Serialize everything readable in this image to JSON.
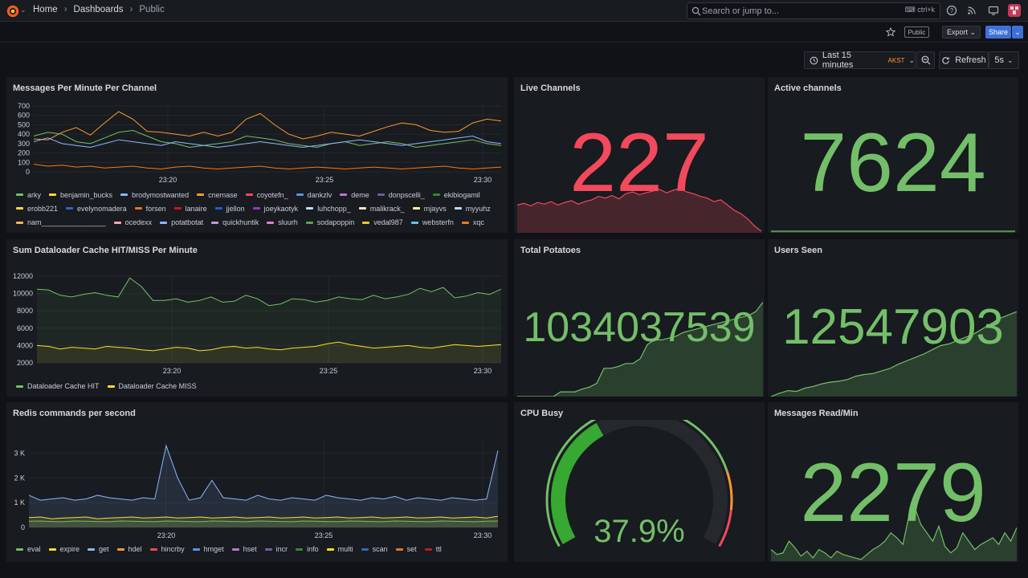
{
  "topbar": {
    "breadcrumb": [
      "Home",
      "Dashboards",
      "Public"
    ],
    "search_placeholder": "Search or jump to...",
    "search_shortcut": "ctrl+k"
  },
  "toolbar": {
    "public_badge": "Public",
    "export_label": "Export",
    "share_label": "Share",
    "time_range": "Last 15 minutes",
    "timezone": "AKST",
    "refresh_label": "Refresh",
    "refresh_interval": "5s"
  },
  "colors": {
    "green": "#73bf69",
    "red": "#f2495c",
    "yellow": "#fade2a",
    "orange": "#ff9830",
    "blue": "#5794f2",
    "bg": "#111217",
    "panel": "#181b1f"
  },
  "panels": {
    "messages": {
      "title": "Messages Per Minute Per Channel",
      "legend": [
        {
          "name": "arky",
          "color": "#73bf69"
        },
        {
          "name": "benjamin_bucks",
          "color": "#fade2a"
        },
        {
          "name": "brodymostwanted",
          "color": "#8ab8ff"
        },
        {
          "name": "cnemase",
          "color": "#ff9830"
        },
        {
          "name": "coyotefn_",
          "color": "#f2495c"
        },
        {
          "name": "dankzlv",
          "color": "#5794f2"
        },
        {
          "name": "deme",
          "color": "#b877d9"
        },
        {
          "name": "donpscelli_",
          "color": "#705da0"
        },
        {
          "name": "ekibiogamil",
          "color": "#37872d"
        },
        {
          "name": "erobb221",
          "color": "#fade2a"
        },
        {
          "name": "evelynomadera",
          "color": "#2f64c8"
        },
        {
          "name": "forsen",
          "color": "#e0752d"
        },
        {
          "name": "lanaire",
          "color": "#c4162a"
        },
        {
          "name": "jjellon",
          "color": "#1f60c4"
        },
        {
          "name": "joeykaotyk",
          "color": "#8f3bb8"
        },
        {
          "name": "luhchopp_",
          "color": "#badff4"
        },
        {
          "name": "malikrack_",
          "color": "#f9e2d2"
        },
        {
          "name": "mjayvs",
          "color": "#fff899"
        },
        {
          "name": "myyuhz",
          "color": "#c0d8ff"
        },
        {
          "name": "nam________________",
          "color": "#ffb357"
        },
        {
          "name": "ocedexx",
          "color": "#ffa6b0"
        },
        {
          "name": "potatbotat",
          "color": "#8ab8ff"
        },
        {
          "name": "quickhuntik",
          "color": "#ca95e5"
        },
        {
          "name": "sluurh",
          "color": "#d683ce"
        },
        {
          "name": "sodapoppin",
          "color": "#56a64b"
        },
        {
          "name": "vedal987",
          "color": "#f2cc0c"
        },
        {
          "name": "websterfn",
          "color": "#5ac8fa"
        },
        {
          "name": "xqc",
          "color": "#ff780a"
        }
      ]
    },
    "live": {
      "title": "Live Channels",
      "value": "227"
    },
    "active": {
      "title": "Active channels",
      "value": "7624"
    },
    "dataloader": {
      "title": "Sum Dataloader Cache HIT/MISS Per Minute",
      "legend": [
        {
          "name": "Dataloader Cache HIT",
          "color": "#73bf69"
        },
        {
          "name": "Dataloader Cache MISS",
          "color": "#fade2a"
        }
      ]
    },
    "potatoes": {
      "title": "Total Potatoes",
      "value": "1034037539"
    },
    "users": {
      "title": "Users Seen",
      "value": "12547903"
    },
    "redis": {
      "title": "Redis commands per second",
      "legend": [
        {
          "name": "eval",
          "color": "#73bf69"
        },
        {
          "name": "expire",
          "color": "#fade2a"
        },
        {
          "name": "get",
          "color": "#8ab8ff"
        },
        {
          "name": "hdel",
          "color": "#ff9830"
        },
        {
          "name": "hincrby",
          "color": "#f2495c"
        },
        {
          "name": "hmget",
          "color": "#5794f2"
        },
        {
          "name": "hset",
          "color": "#b877d9"
        },
        {
          "name": "incr",
          "color": "#705da0"
        },
        {
          "name": "info",
          "color": "#37872d"
        },
        {
          "name": "multi",
          "color": "#fade2a"
        },
        {
          "name": "scan",
          "color": "#2f64c8"
        },
        {
          "name": "set",
          "color": "#e0752d"
        },
        {
          "name": "ttl",
          "color": "#c4162a"
        }
      ]
    },
    "cpu": {
      "title": "CPU Busy",
      "value": "37.9%",
      "percent": 37.9
    },
    "readmin": {
      "title": "Messages Read/Min",
      "value": "2279"
    }
  },
  "chart_data": [
    {
      "type": "line",
      "title": "Messages Per Minute Per Channel",
      "x_ticks": [
        "23:20",
        "23:25",
        "23:30"
      ],
      "y_ticks": [
        "0",
        "100",
        "200",
        "300",
        "400",
        "500",
        "600",
        "700"
      ],
      "ylim": [
        0,
        700
      ],
      "series": [
        {
          "name": "cnemase",
          "values": [
            350,
            340,
            420,
            470,
            390,
            520,
            640,
            560,
            430,
            420,
            400,
            380,
            420,
            380,
            420,
            560,
            620,
            500,
            400,
            350,
            380,
            420,
            400,
            380,
            430,
            480,
            520,
            500,
            440,
            420,
            430,
            520,
            560,
            540
          ]
        },
        {
          "name": "arky",
          "values": [
            380,
            420,
            400,
            320,
            300,
            360,
            420,
            440,
            380,
            320,
            300,
            260,
            280,
            300,
            320,
            380,
            360,
            340,
            300,
            280,
            260,
            300,
            320,
            280,
            300,
            320,
            300,
            260,
            280,
            300,
            320,
            340,
            300,
            280
          ]
        },
        {
          "name": "brodymostwanted",
          "values": [
            320,
            360,
            300,
            280,
            260,
            300,
            340,
            320,
            300,
            280,
            320,
            300,
            280,
            260,
            280,
            300,
            320,
            300,
            280,
            260,
            280,
            300,
            320,
            340,
            320,
            300,
            280,
            300,
            320,
            340,
            360,
            380,
            320,
            300
          ]
        },
        {
          "name": "xqc",
          "values": [
            80,
            60,
            70,
            50,
            60,
            40,
            50,
            60,
            40,
            30,
            50,
            60,
            40,
            30,
            40,
            50,
            60,
            40,
            30,
            40,
            50,
            40,
            30,
            40,
            50,
            40,
            30,
            40,
            50,
            60,
            40,
            30,
            40,
            50
          ]
        }
      ]
    },
    {
      "type": "line",
      "title": "Sum Dataloader Cache HIT/MISS Per Minute",
      "x_ticks": [
        "23:20",
        "23:25",
        "23:30"
      ],
      "y_ticks": [
        "2000",
        "4000",
        "6000",
        "8000",
        "10000",
        "12000"
      ],
      "ylim": [
        2000,
        12000
      ],
      "series": [
        {
          "name": "Dataloader Cache HIT",
          "values": [
            10500,
            10400,
            9800,
            9600,
            9900,
            10100,
            9800,
            9600,
            11800,
            10800,
            9200,
            9200,
            9400,
            9000,
            9200,
            9600,
            9000,
            9100,
            9800,
            9400,
            8600,
            8800,
            9400,
            9300,
            9000,
            9200,
            9600,
            9400,
            9300,
            9800,
            9400,
            9600,
            9900,
            10600,
            10200,
            10700,
            9500,
            9700,
            10100,
            9900,
            10500
          ]
        },
        {
          "name": "Dataloader Cache MISS",
          "values": [
            4000,
            3900,
            3600,
            3800,
            3700,
            3600,
            3900,
            3800,
            3700,
            3500,
            3400,
            3600,
            3800,
            3700,
            3400,
            3500,
            3800,
            3900,
            3700,
            3800,
            3600,
            3500,
            3700,
            3800,
            3900,
            4200,
            4400,
            4100,
            3900,
            3700,
            3800,
            3900,
            4000,
            3800,
            3700,
            3900,
            4100,
            4000,
            3900,
            4000,
            4100
          ]
        }
      ]
    },
    {
      "type": "line",
      "title": "Redis commands per second",
      "x_ticks": [
        "23:20",
        "23:25",
        "23:30"
      ],
      "y_ticks": [
        "0",
        "1 K",
        "2 K",
        "3 K"
      ],
      "ylim": [
        0,
        3500
      ],
      "series": [
        {
          "name": "get",
          "values": [
            1300,
            1100,
            1150,
            1200,
            1100,
            1150,
            1300,
            1200,
            1150,
            1100,
            1200,
            1150,
            3300,
            2000,
            1100,
            1200,
            1900,
            1200,
            1150,
            1100,
            1300,
            1150,
            1100,
            1200,
            1150,
            1100,
            1300,
            1200,
            1150,
            1100,
            1200,
            1150,
            1250,
            1100,
            1200,
            1150,
            1100,
            1200,
            1150,
            1100,
            1150,
            3100
          ]
        },
        {
          "name": "expire",
          "values": [
            400,
            420,
            350,
            380,
            400,
            420,
            350,
            380,
            400,
            420,
            380,
            400,
            420,
            380,
            400,
            420,
            380,
            400,
            420,
            380,
            400,
            420,
            380,
            400,
            420,
            380,
            400,
            420,
            380,
            400,
            420,
            380,
            400,
            420,
            380,
            400,
            420,
            380,
            400,
            420,
            380,
            450
          ]
        },
        {
          "name": "eval",
          "values": [
            250,
            260,
            240,
            230,
            260,
            250,
            240,
            230,
            260,
            250,
            240,
            230,
            260,
            250,
            240,
            230,
            260,
            250,
            240,
            230,
            260,
            250,
            240,
            230,
            260,
            250,
            240,
            230,
            260,
            250,
            240,
            230,
            260,
            250,
            240,
            230,
            260,
            250,
            240,
            230,
            250,
            260
          ]
        }
      ]
    }
  ]
}
